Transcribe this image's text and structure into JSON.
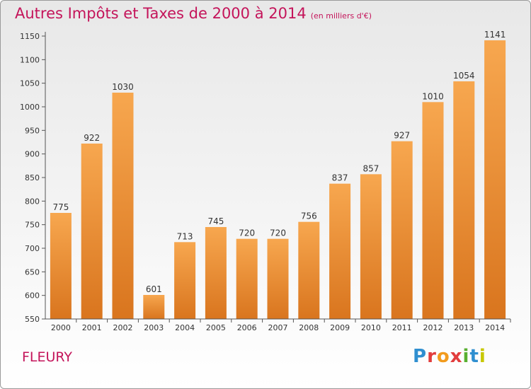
{
  "header": {
    "title": "Autres Impôts et Taxes de 2000 à 2014",
    "subtitle": "(en milliers d'€)"
  },
  "footer": {
    "place": "FLEURY"
  },
  "logo": {
    "text": "Proxiti",
    "colors": [
      "#2f8fd0",
      "#e23d3d",
      "#f29b1d",
      "#e23d3d",
      "#59b031",
      "#2f8fd0",
      "#c8c800"
    ]
  },
  "chart_data": {
    "type": "bar",
    "title": "Autres Impôts et Taxes de 2000 à 2014",
    "subtitle": "(en milliers d'€)",
    "categories": [
      "2000",
      "2001",
      "2002",
      "2003",
      "2004",
      "2005",
      "2006",
      "2007",
      "2008",
      "2009",
      "2010",
      "2011",
      "2012",
      "2013",
      "2014"
    ],
    "values": [
      775,
      922,
      1030,
      601,
      713,
      745,
      720,
      720,
      756,
      837,
      857,
      927,
      1010,
      1054,
      1141
    ],
    "ylim": [
      550,
      1150
    ],
    "yticks": [
      550,
      600,
      650,
      700,
      750,
      800,
      850,
      900,
      950,
      1000,
      1050,
      1100,
      1150
    ],
    "grid": false,
    "colors": {
      "bar_top": "#f7a74f",
      "bar_bottom": "#d9751e"
    }
  }
}
